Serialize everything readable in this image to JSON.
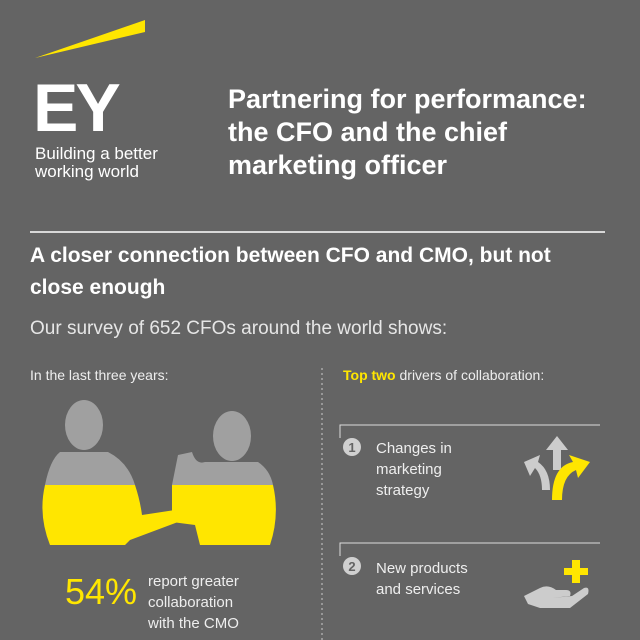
{
  "logo": {
    "wordmark": "EY",
    "tagline_lines": [
      "Building a better",
      "working world"
    ]
  },
  "title_lines": [
    "Partnering for performance:",
    "the CFO and the chief",
    "marketing officer"
  ],
  "heading_lines": [
    "A closer connection between CFO and CMO, but not",
    "close enough"
  ],
  "subheading": "Our survey of 652 CFOs around the world shows:",
  "left": {
    "label": "In the last three years:",
    "stat": "54%",
    "stat_text_lines": [
      "report greater",
      "collaboration",
      "with the CMO"
    ]
  },
  "right": {
    "label_highlight": "Top two",
    "label_rest": "drivers of collaboration:",
    "items": [
      {
        "number": "1",
        "lines": [
          "Changes in",
          "marketing",
          "strategy"
        ]
      },
      {
        "number": "2",
        "lines": [
          "New products",
          "and services"
        ]
      }
    ]
  }
}
